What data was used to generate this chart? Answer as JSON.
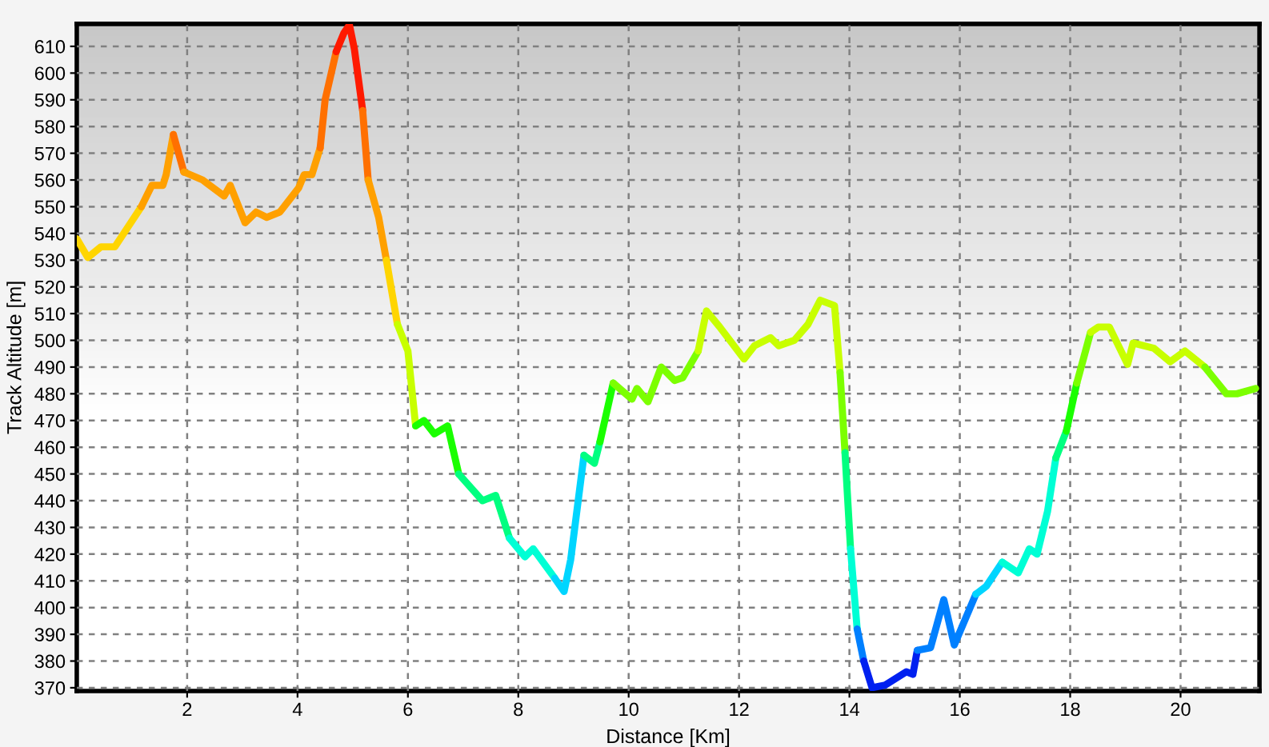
{
  "chart_data": {
    "type": "line",
    "xlabel": "Distance [Km]",
    "ylabel": "Track Altitude [m]",
    "series": [
      {
        "color": "#ffd500",
        "x": [
          0,
          0.2,
          0.44,
          0.69,
          1.17
        ],
        "values": [
          538,
          531,
          535,
          535,
          550
        ]
      },
      {
        "color": "#ffa000",
        "x": [
          1.17,
          1.36,
          1.56,
          1.62,
          1.75
        ],
        "values": [
          550,
          558,
          558,
          562,
          577
        ]
      },
      {
        "color": "#ff7000",
        "x": [
          1.75,
          1.94
        ],
        "values": [
          577,
          563
        ]
      },
      {
        "color": "#ffa000",
        "x": [
          1.94,
          2.28,
          2.67,
          2.78,
          3.05,
          3.25,
          3.44,
          3.68,
          4.02,
          4.12,
          4.26,
          4.41
        ],
        "values": [
          563,
          560,
          554,
          558,
          544,
          548,
          546,
          548,
          557,
          562,
          562,
          572
        ]
      },
      {
        "color": "#ff7000",
        "x": [
          4.41,
          4.5,
          4.7
        ],
        "values": [
          572,
          590,
          608
        ]
      },
      {
        "color": "#ff1a00",
        "x": [
          4.7,
          4.84,
          4.94,
          5.03,
          5.18
        ],
        "values": [
          608,
          615,
          618,
          609,
          586
        ]
      },
      {
        "color": "#ff7000",
        "x": [
          5.18,
          5.28
        ],
        "values": [
          586,
          560
        ]
      },
      {
        "color": "#ffa000",
        "x": [
          5.28,
          5.47,
          5.61
        ],
        "values": [
          560,
          546,
          530
        ]
      },
      {
        "color": "#ffd500",
        "x": [
          5.61,
          5.81
        ],
        "values": [
          530,
          506
        ]
      },
      {
        "color": "#c8ff00",
        "x": [
          5.81,
          6.0,
          6.14
        ],
        "values": [
          506,
          496,
          468
        ]
      },
      {
        "color": "#1aff00",
        "x": [
          6.14,
          6.29,
          6.48,
          6.72,
          6.92
        ],
        "values": [
          468,
          470,
          465,
          468,
          450
        ]
      },
      {
        "color": "#00ff80",
        "x": [
          6.92,
          7.35,
          7.59,
          7.84
        ],
        "values": [
          450,
          440,
          442,
          426
        ]
      },
      {
        "color": "#00ffd5",
        "x": [
          7.84,
          8.12,
          8.27,
          8.66
        ],
        "values": [
          426,
          419,
          422,
          411
        ]
      },
      {
        "color": "#00d5ff",
        "x": [
          8.66,
          8.83,
          8.95,
          9.19
        ],
        "values": [
          411,
          406,
          418,
          457
        ]
      },
      {
        "color": "#00ff80",
        "x": [
          9.19,
          9.38,
          9.48
        ],
        "values": [
          457,
          454,
          462
        ]
      },
      {
        "color": "#1aff00",
        "x": [
          9.48,
          9.72
        ],
        "values": [
          462,
          484
        ]
      },
      {
        "color": "#7cff00",
        "x": [
          9.72,
          10.06,
          10.15,
          10.35,
          10.59,
          10.83,
          10.98,
          11.26
        ],
        "values": [
          484,
          478,
          482,
          477,
          490,
          485,
          486,
          496
        ]
      },
      {
        "color": "#c8ff00",
        "x": [
          11.26,
          11.41,
          11.65,
          12.09,
          12.28,
          12.57,
          12.72,
          13.0,
          13.25,
          13.47,
          13.73,
          13.83
        ],
        "values": [
          496,
          511,
          505,
          493,
          498,
          501,
          498,
          500,
          506,
          515,
          513,
          488
        ]
      },
      {
        "color": "#7cff00",
        "x": [
          13.83,
          13.92
        ],
        "values": [
          488,
          458
        ]
      },
      {
        "color": "#00ff80",
        "x": [
          13.92,
          14.02
        ],
        "values": [
          458,
          422
        ]
      },
      {
        "color": "#00ffd5",
        "x": [
          14.02,
          14.14
        ],
        "values": [
          422,
          392
        ]
      },
      {
        "color": "#0080ff",
        "x": [
          14.14,
          14.26
        ],
        "values": [
          392,
          380
        ]
      },
      {
        "color": "#0020f0",
        "x": [
          14.26,
          14.41,
          14.65,
          15.03,
          15.15,
          15.23
        ],
        "values": [
          380,
          370,
          371,
          376,
          375,
          384
        ]
      },
      {
        "color": "#0080ff",
        "x": [
          15.23,
          15.47,
          15.71,
          15.9,
          16.29
        ],
        "values": [
          384,
          385,
          403,
          386,
          405
        ]
      },
      {
        "color": "#00d5ff",
        "x": [
          16.29,
          16.48,
          16.77
        ],
        "values": [
          405,
          408,
          417
        ]
      },
      {
        "color": "#00ffd5",
        "x": [
          16.77,
          17.06,
          17.26,
          17.4,
          17.59,
          17.74
        ],
        "values": [
          417,
          413,
          422,
          420,
          436,
          456
        ]
      },
      {
        "color": "#00ff80",
        "x": [
          17.74,
          17.93
        ],
        "values": [
          456,
          466
        ]
      },
      {
        "color": "#1aff00",
        "x": [
          17.93,
          18.12
        ],
        "values": [
          466,
          484
        ]
      },
      {
        "color": "#7cff00",
        "x": [
          18.12,
          18.37
        ],
        "values": [
          484,
          503
        ]
      },
      {
        "color": "#c8ff00",
        "x": [
          18.37,
          18.51,
          18.71,
          19.04,
          19.14,
          19.52,
          19.81,
          20.08,
          20.44
        ],
        "values": [
          503,
          505,
          505,
          491,
          499,
          497,
          492,
          496,
          490
        ]
      },
      {
        "color": "#7cff00",
        "x": [
          20.44,
          20.83,
          21.02,
          21.36
        ],
        "values": [
          490,
          480,
          480,
          482
        ]
      }
    ],
    "xlim": [
      0,
      21.43
    ],
    "xticks": [
      2,
      4,
      6,
      8,
      10,
      12,
      14,
      16,
      18,
      20
    ],
    "ylim": [
      368.8,
      618.4
    ],
    "yticks": [
      370,
      380,
      390,
      400,
      410,
      420,
      430,
      440,
      450,
      460,
      470,
      480,
      490,
      500,
      510,
      520,
      530,
      540,
      550,
      560,
      570,
      580,
      590,
      600,
      610
    ],
    "grid": true
  }
}
